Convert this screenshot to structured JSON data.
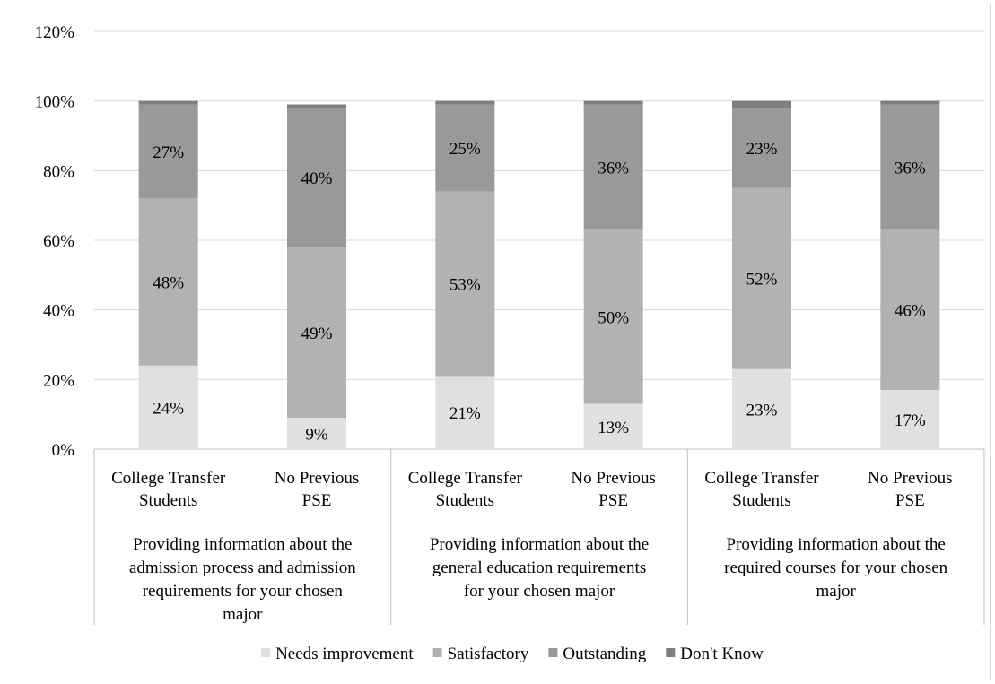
{
  "chart_data": {
    "type": "bar",
    "stacked": true,
    "title": "",
    "xlabel": "",
    "ylabel": "",
    "ylim": [
      0,
      120
    ],
    "y_ticks": [
      "0%",
      "20%",
      "40%",
      "60%",
      "80%",
      "100%",
      "120%"
    ],
    "grid": true,
    "legend_position": "bottom",
    "categories": [
      "College Transfer Students",
      "No Previous PSE",
      "College Transfer Students",
      "No Previous PSE",
      "College Transfer Students",
      "No Previous PSE"
    ],
    "category_lines": [
      [
        "College Transfer",
        "Students"
      ],
      [
        "No Previous",
        "PSE"
      ],
      [
        "College Transfer",
        "Students"
      ],
      [
        "No Previous",
        "PSE"
      ],
      [
        "College Transfer",
        "Students"
      ],
      [
        "No Previous",
        "PSE"
      ]
    ],
    "groups": [
      {
        "label": "Providing information about the admission process and admission requirements for your chosen major",
        "lines": [
          "Providing information about the",
          "admission process and admission",
          "requirements for your chosen",
          "major"
        ]
      },
      {
        "label": "Providing information about the general education requirements for your chosen major",
        "lines": [
          "Providing information about the",
          "general education requirements",
          "for your chosen major"
        ]
      },
      {
        "label": "Providing information about the required courses for your chosen major",
        "lines": [
          "Providing information about the",
          "required courses for your chosen",
          "major"
        ]
      }
    ],
    "series": [
      {
        "name": "Needs improvement",
        "color": "#e0e0e0",
        "values": [
          24,
          9,
          21,
          13,
          23,
          17
        ],
        "labels": [
          "24%",
          "9%",
          "21%",
          "13%",
          "23%",
          "17%"
        ]
      },
      {
        "name": "Satisfactory",
        "color": "#b2b2b2",
        "values": [
          48,
          49,
          53,
          50,
          52,
          46
        ],
        "labels": [
          "48%",
          "49%",
          "53%",
          "50%",
          "52%",
          "46%"
        ]
      },
      {
        "name": "Outstanding",
        "color": "#999999",
        "values": [
          27,
          40,
          25,
          36,
          23,
          36
        ],
        "labels": [
          "27%",
          "40%",
          "25%",
          "36%",
          "23%",
          "36%"
        ]
      },
      {
        "name": "Don't Know",
        "color": "#7f7f7f",
        "values": [
          1,
          1,
          1,
          1,
          2,
          1
        ],
        "labels": [
          "",
          "",
          "",
          "",
          "",
          ""
        ]
      }
    ]
  }
}
